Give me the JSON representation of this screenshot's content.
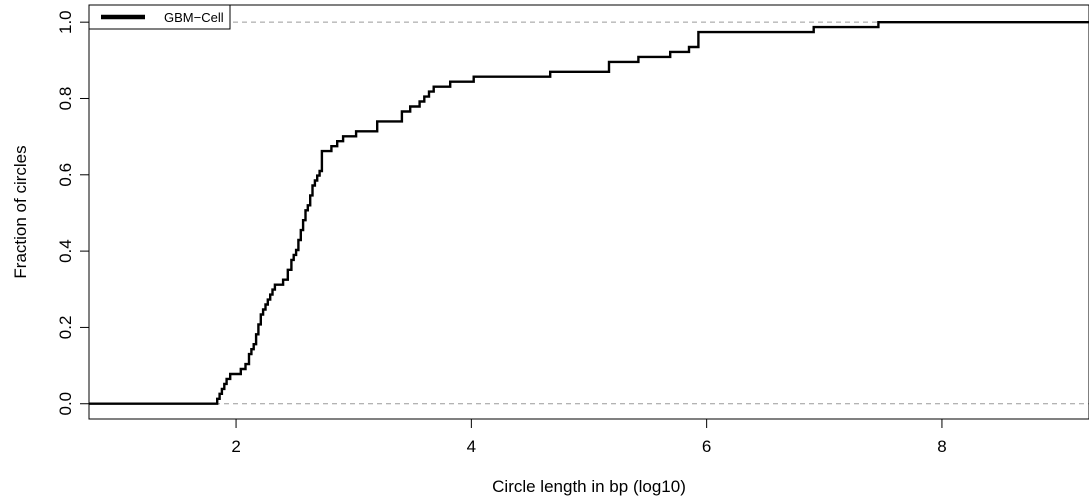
{
  "chart_data": {
    "type": "line",
    "title": "",
    "xlabel": "Circle length in bp (log10)",
    "ylabel": "Fraction of circles",
    "xlim": [
      0.75,
      9.25
    ],
    "ylim": [
      -0.04,
      1.045
    ],
    "x_ticks": [
      2,
      4,
      6,
      8
    ],
    "y_ticks": [
      0.0,
      0.2,
      0.4,
      0.6,
      0.8,
      1.0
    ],
    "x_tick_labels": [
      "2",
      "4",
      "6",
      "8"
    ],
    "y_tick_labels": [
      "0.0",
      "0.2",
      "0.4",
      "0.6",
      "0.8",
      "1.0"
    ],
    "grid": false,
    "reference_lines": [
      0,
      1
    ],
    "legend": {
      "position": "top-left",
      "entries": [
        "GBM−Cell"
      ]
    },
    "series": [
      {
        "name": "GBM−Cell",
        "color": "#000000",
        "step": true,
        "x": [
          0.75,
          1.84,
          1.86,
          1.88,
          1.9,
          1.92,
          1.95,
          1.97,
          2.0,
          2.04,
          2.08,
          2.11,
          2.13,
          2.15,
          2.17,
          2.19,
          2.21,
          2.23,
          2.25,
          2.27,
          2.29,
          2.31,
          2.33,
          2.36,
          2.4,
          2.44,
          2.47,
          2.49,
          2.51,
          2.53,
          2.55,
          2.57,
          2.59,
          2.61,
          2.63,
          2.65,
          2.67,
          2.69,
          2.71,
          2.73,
          2.76,
          2.81,
          2.86,
          2.91,
          3.02,
          3.2,
          3.41,
          3.48,
          3.56,
          3.6,
          3.64,
          3.68,
          3.82,
          4.02,
          4.67,
          5.17,
          5.42,
          5.69,
          5.85,
          5.93,
          6.91,
          7.46,
          9.25
        ],
        "y": [
          0.0,
          0.013,
          0.026,
          0.039,
          0.052,
          0.065,
          0.078,
          0.078,
          0.078,
          0.091,
          0.104,
          0.13,
          0.143,
          0.156,
          0.182,
          0.208,
          0.234,
          0.247,
          0.26,
          0.273,
          0.286,
          0.299,
          0.312,
          0.312,
          0.325,
          0.351,
          0.377,
          0.39,
          0.403,
          0.429,
          0.455,
          0.481,
          0.507,
          0.52,
          0.546,
          0.572,
          0.585,
          0.598,
          0.61,
          0.662,
          0.662,
          0.675,
          0.688,
          0.701,
          0.714,
          0.74,
          0.766,
          0.779,
          0.792,
          0.805,
          0.818,
          0.831,
          0.844,
          0.857,
          0.87,
          0.896,
          0.909,
          0.922,
          0.935,
          0.974,
          0.987,
          1.0,
          1.0
        ]
      }
    ]
  }
}
